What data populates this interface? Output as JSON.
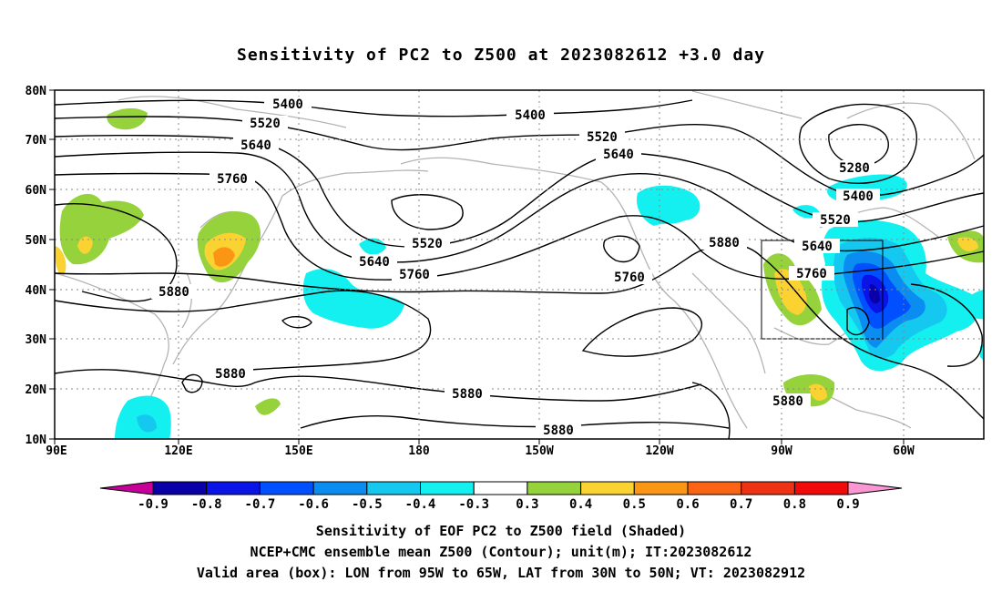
{
  "title": "Sensitivity of PC2 to Z500 at 2023082612 +3.0 day",
  "lat_labels": [
    "10N",
    "20N",
    "30N",
    "40N",
    "50N",
    "60N",
    "70N",
    "80N"
  ],
  "lon_labels": [
    "90E",
    "120E",
    "150E",
    "180",
    "150W",
    "120W",
    "90W",
    "60W"
  ],
  "contour_labels": [
    "5280",
    "5400",
    "5400",
    "5400",
    "5520",
    "5520",
    "5520",
    "5520",
    "5640",
    "5640",
    "5640",
    "5640",
    "5760",
    "5760",
    "5760",
    "5760",
    "5880",
    "5880",
    "5880",
    "5880",
    "5880"
  ],
  "colorbar": {
    "labels": [
      "-0.9",
      "-0.8",
      "-0.7",
      "-0.6",
      "-0.5",
      "-0.4",
      "-0.3",
      "0.3",
      "0.4",
      "0.5",
      "0.6",
      "0.7",
      "0.8",
      "0.9"
    ],
    "colors": [
      "#c8009a",
      "#0a00a8",
      "#0a14e6",
      "#0050ff",
      "#0a8cf0",
      "#14c8f0",
      "#14f0f0",
      "#ffffff",
      "#96d23c",
      "#fad232",
      "#fa9614",
      "#fa6414",
      "#f03214",
      "#f00a0a",
      "#fa96d2"
    ]
  },
  "box": {
    "lon_min": "95W",
    "lon_max": "65W",
    "lat_min": "30N",
    "lat_max": "50N"
  },
  "caption": [
    "Sensitivity of EOF PC2 to Z500 field (Shaded)",
    "NCEP+CMC ensemble mean Z500 (Contour); unit(m); IT:2023082612",
    "Valid area (box): LON from 95W to 65W, LAT from 30N to 50N; VT: 2023082912"
  ]
}
